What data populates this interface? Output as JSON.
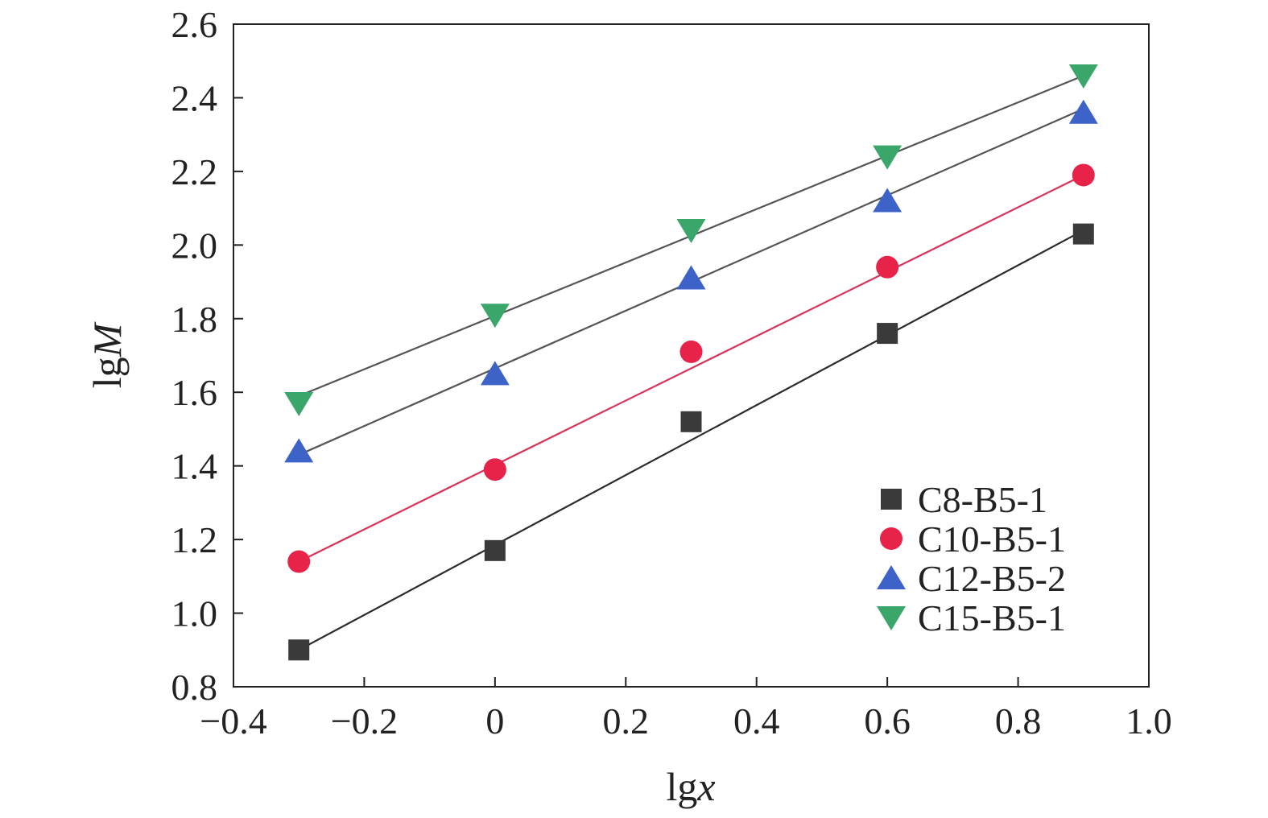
{
  "chart_data": {
    "type": "scatter",
    "xlabel": {
      "prefix": "lg",
      "var": "x"
    },
    "ylabel": {
      "prefix": "lg",
      "var": "M"
    },
    "xlim": [
      -0.4,
      1.0
    ],
    "ylim": [
      0.8,
      2.6
    ],
    "xticks": [
      -0.4,
      -0.2,
      0,
      0.2,
      0.4,
      0.6,
      0.8,
      1.0
    ],
    "yticks": [
      0.8,
      1.0,
      1.2,
      1.4,
      1.6,
      1.8,
      2.0,
      2.2,
      2.4,
      2.6
    ],
    "xtick_labels": [
      "−0.4",
      "−0.2",
      "0",
      "0.2",
      "0.4",
      "0.6",
      "0.8",
      "1.0"
    ],
    "ytick_labels": [
      "0.8",
      "1.0",
      "1.2",
      "1.4",
      "1.6",
      "1.8",
      "2.0",
      "2.2",
      "2.4",
      "2.6"
    ],
    "grid": false,
    "legend_position": "bottom-right",
    "x": [
      -0.3,
      0,
      0.3,
      0.6,
      0.9
    ],
    "series": [
      {
        "name": "C8-B5-1",
        "marker": "square",
        "color": "#3a3a3a",
        "line_color": "#2b2b2b",
        "values": [
          0.9,
          1.17,
          1.52,
          1.76,
          2.03
        ],
        "fit": [
          0.9,
          2.04
        ]
      },
      {
        "name": "C10-B5-1",
        "marker": "circle",
        "color": "#e8234a",
        "line_color": "#d8335a",
        "values": [
          1.14,
          1.39,
          1.71,
          1.94,
          2.19
        ],
        "fit": [
          1.14,
          2.19
        ]
      },
      {
        "name": "C12-B5-2",
        "marker": "triangle-up",
        "color": "#3d63c9",
        "line_color": "#555555",
        "values": [
          1.44,
          1.65,
          1.91,
          2.12,
          2.36
        ],
        "fit": [
          1.43,
          2.37
        ]
      },
      {
        "name": "C15-B5-1",
        "marker": "triangle-down",
        "color": "#3aa66a",
        "line_color": "#555555",
        "values": [
          1.57,
          1.81,
          2.04,
          2.24,
          2.46
        ],
        "fit": [
          1.59,
          2.46
        ]
      }
    ]
  }
}
